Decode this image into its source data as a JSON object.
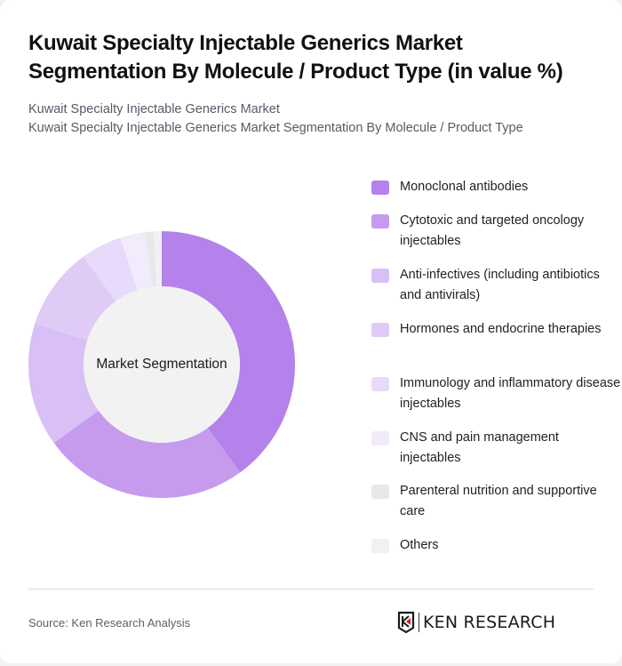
{
  "header": {
    "title": "Kuwait Specialty Injectable Generics Market Segmentation By Molecule / Product Type (in value %)",
    "subtitle_line1": "Kuwait Specialty Injectable Generics Market",
    "subtitle_line2": "Kuwait Specialty Injectable Generics Market Segmentation By Molecule / Product Type"
  },
  "chart": {
    "center_label": "Market Segmentation"
  },
  "legend": [
    {
      "label": "Monoclonal antibodies",
      "color": "#b482ea"
    },
    {
      "label": "Cytotoxic and targeted oncology injectables",
      "color": "#c69bee"
    },
    {
      "label": "Anti-infectives (including antibiotics and antivirals)",
      "color": "#d8bff5"
    },
    {
      "label": "Hormones and endocrine therapies",
      "color": "#e0cbf6"
    },
    {
      "label": "Immunology and inflammatory disease injectables",
      "color": "#e8dafa"
    },
    {
      "label": "CNS and pain management injectables",
      "color": "#f2ebfc"
    },
    {
      "label": "Parenteral nutrition and supportive care",
      "color": "#e8e8e8"
    },
    {
      "label": "Others",
      "color": "#f1f1f1"
    }
  ],
  "footer": {
    "source": "Source: Ken Research Analysis",
    "logo_text": "KEN RESEARCH",
    "logo_icon": "ken-research-shield-icon"
  },
  "chart_data": {
    "type": "pie",
    "variant": "donut",
    "title": "Kuwait Specialty Injectable Generics Market Segmentation By Molecule / Product Type (in value %)",
    "center_label": "Market Segmentation",
    "categories": [
      "Monoclonal antibodies",
      "Cytotoxic and targeted oncology injectables",
      "Anti-infectives (including antibiotics and antivirals)",
      "Hormones and endocrine therapies",
      "Immunology and inflammatory disease injectables",
      "CNS and pain management injectables",
      "Parenteral nutrition and supportive care",
      "Others"
    ],
    "values": [
      40,
      25,
      15,
      10,
      5,
      3,
      1,
      1
    ],
    "colors": [
      "#b482ea",
      "#c69bee",
      "#d8bff5",
      "#e0cbf6",
      "#e8dafa",
      "#f2ebfc",
      "#e8e8e8",
      "#f1f1f1"
    ],
    "legend_position": "right",
    "unit": "%"
  }
}
